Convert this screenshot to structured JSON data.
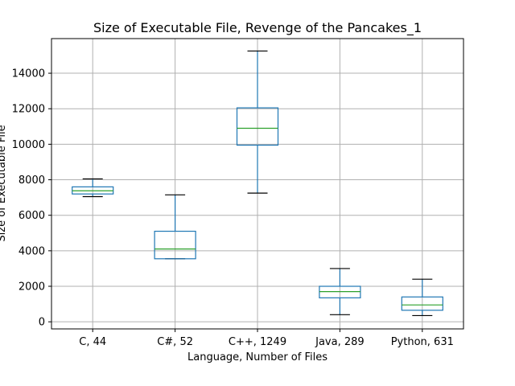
{
  "chart_data": {
    "type": "box",
    "title": "Size of Executable File, Revenge of the Pancakes_1",
    "xlabel": "Language, Number of Files",
    "ylabel": "Size of Executable File",
    "categories": [
      "C, 44",
      "C#, 52",
      "C++, 1249",
      "Java, 289",
      "Python, 631"
    ],
    "boxes": [
      {
        "whisker_low": 7050,
        "q1": 7200,
        "median": 7380,
        "q3": 7600,
        "whisker_high": 8050
      },
      {
        "whisker_low": 3550,
        "q1": 3550,
        "median": 4100,
        "q3": 5100,
        "whisker_high": 7150
      },
      {
        "whisker_low": 7250,
        "q1": 9950,
        "median": 10900,
        "q3": 12050,
        "whisker_high": 15250
      },
      {
        "whisker_low": 400,
        "q1": 1350,
        "median": 1700,
        "q3": 2000,
        "whisker_high": 3000
      },
      {
        "whisker_low": 350,
        "q1": 650,
        "median": 950,
        "q3": 1400,
        "whisker_high": 2400
      }
    ],
    "yticks": [
      0,
      2000,
      4000,
      6000,
      8000,
      10000,
      12000,
      14000
    ],
    "ylim": [
      -400,
      15950
    ],
    "grid": true,
    "colors": {
      "box": "#1f77b4",
      "median": "#2ca02c",
      "cap": "#000000",
      "grid": "#b0b0b0",
      "frame": "#000000"
    }
  }
}
